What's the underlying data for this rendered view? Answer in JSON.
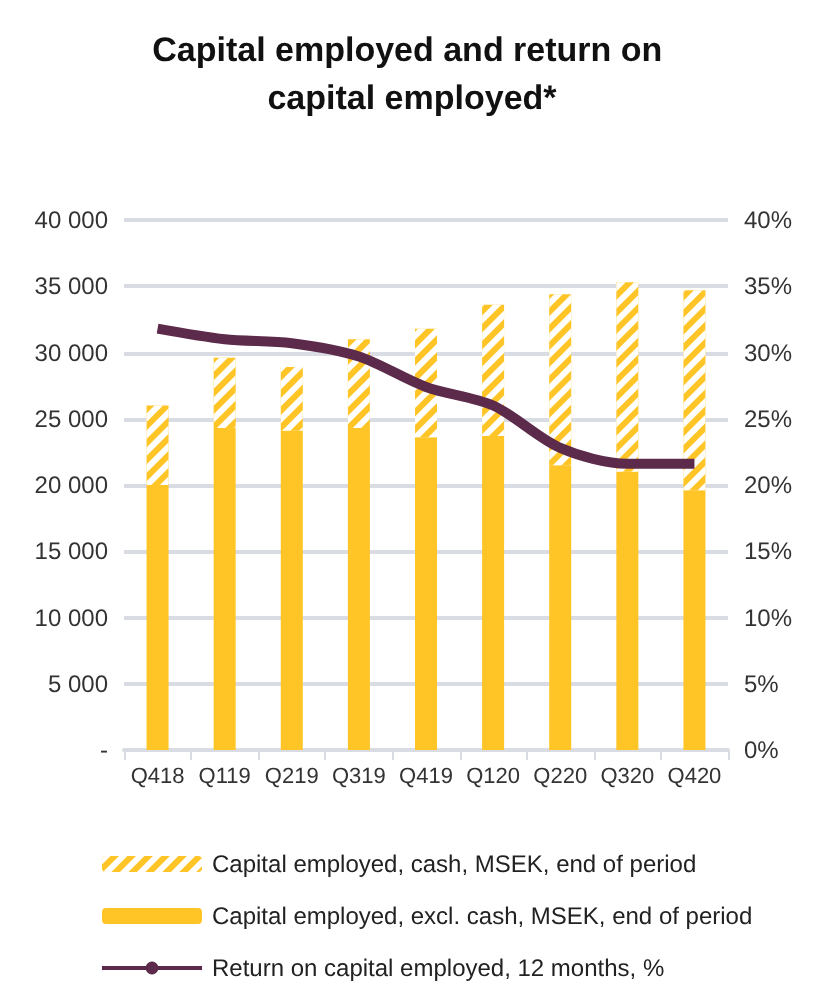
{
  "chart_data": {
    "type": "bar",
    "title": "Capital employed and return on capital employed*",
    "categories": [
      "Q418",
      "Q119",
      "Q219",
      "Q319",
      "Q419",
      "Q120",
      "Q220",
      "Q320",
      "Q420"
    ],
    "stacked": true,
    "series": [
      {
        "name": "Capital employed, excl. cash, MSEK, end of period",
        "color": "#ffc425",
        "values": [
          20000,
          24300,
          24100,
          24300,
          23600,
          23700,
          21500,
          21000,
          19600
        ]
      },
      {
        "name": "Capital employed, cash, MSEK, end of period",
        "color": "#ffc425",
        "values": [
          6000,
          5300,
          4800,
          6700,
          8200,
          9900,
          12900,
          14300,
          15100
        ]
      },
      {
        "name": "Return on capital employed, 12 months, %",
        "type": "line",
        "axis": "y2",
        "color": "#5c2a4a",
        "values": [
          31.8,
          31.0,
          30.7,
          29.7,
          27.4,
          26.0,
          22.8,
          21.6,
          21.6
        ]
      }
    ],
    "ylim": [
      0,
      40000
    ],
    "yticks": [
      {
        "value": 0,
        "label": "-"
      },
      {
        "value": 5000,
        "label": "5 000"
      },
      {
        "value": 10000,
        "label": "10 000"
      },
      {
        "value": 15000,
        "label": "15 000"
      },
      {
        "value": 20000,
        "label": "20 000"
      },
      {
        "value": 25000,
        "label": "25 000"
      },
      {
        "value": 30000,
        "label": "30 000"
      },
      {
        "value": 35000,
        "label": "35 000"
      },
      {
        "value": 40000,
        "label": "40 000"
      }
    ],
    "y2lim": [
      0,
      40
    ],
    "y2ticks": [
      {
        "value": 0,
        "label": "0%"
      },
      {
        "value": 5,
        "label": "5%"
      },
      {
        "value": 10,
        "label": "10%"
      },
      {
        "value": 15,
        "label": "15%"
      },
      {
        "value": 20,
        "label": "20%"
      },
      {
        "value": 25,
        "label": "25%"
      },
      {
        "value": 30,
        "label": "30%"
      },
      {
        "value": 35,
        "label": "35%"
      },
      {
        "value": 40,
        "label": "40%"
      }
    ],
    "grid": "y",
    "legend": "bottom",
    "marker": "none"
  }
}
